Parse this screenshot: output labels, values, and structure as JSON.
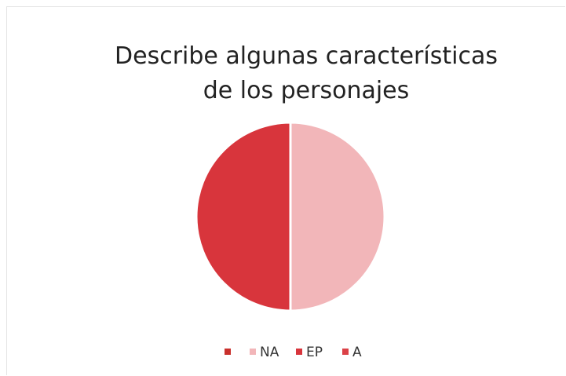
{
  "chart_data": {
    "type": "pie",
    "title": "Describe algunas características de los personajes",
    "categories": [
      null,
      "NA",
      "EP",
      "A"
    ],
    "values": [
      0,
      50,
      50,
      0
    ],
    "colors": [
      "#c9302c",
      "#f2b6b9",
      "#d8353c",
      "#db4147"
    ],
    "legend": "bottom"
  }
}
